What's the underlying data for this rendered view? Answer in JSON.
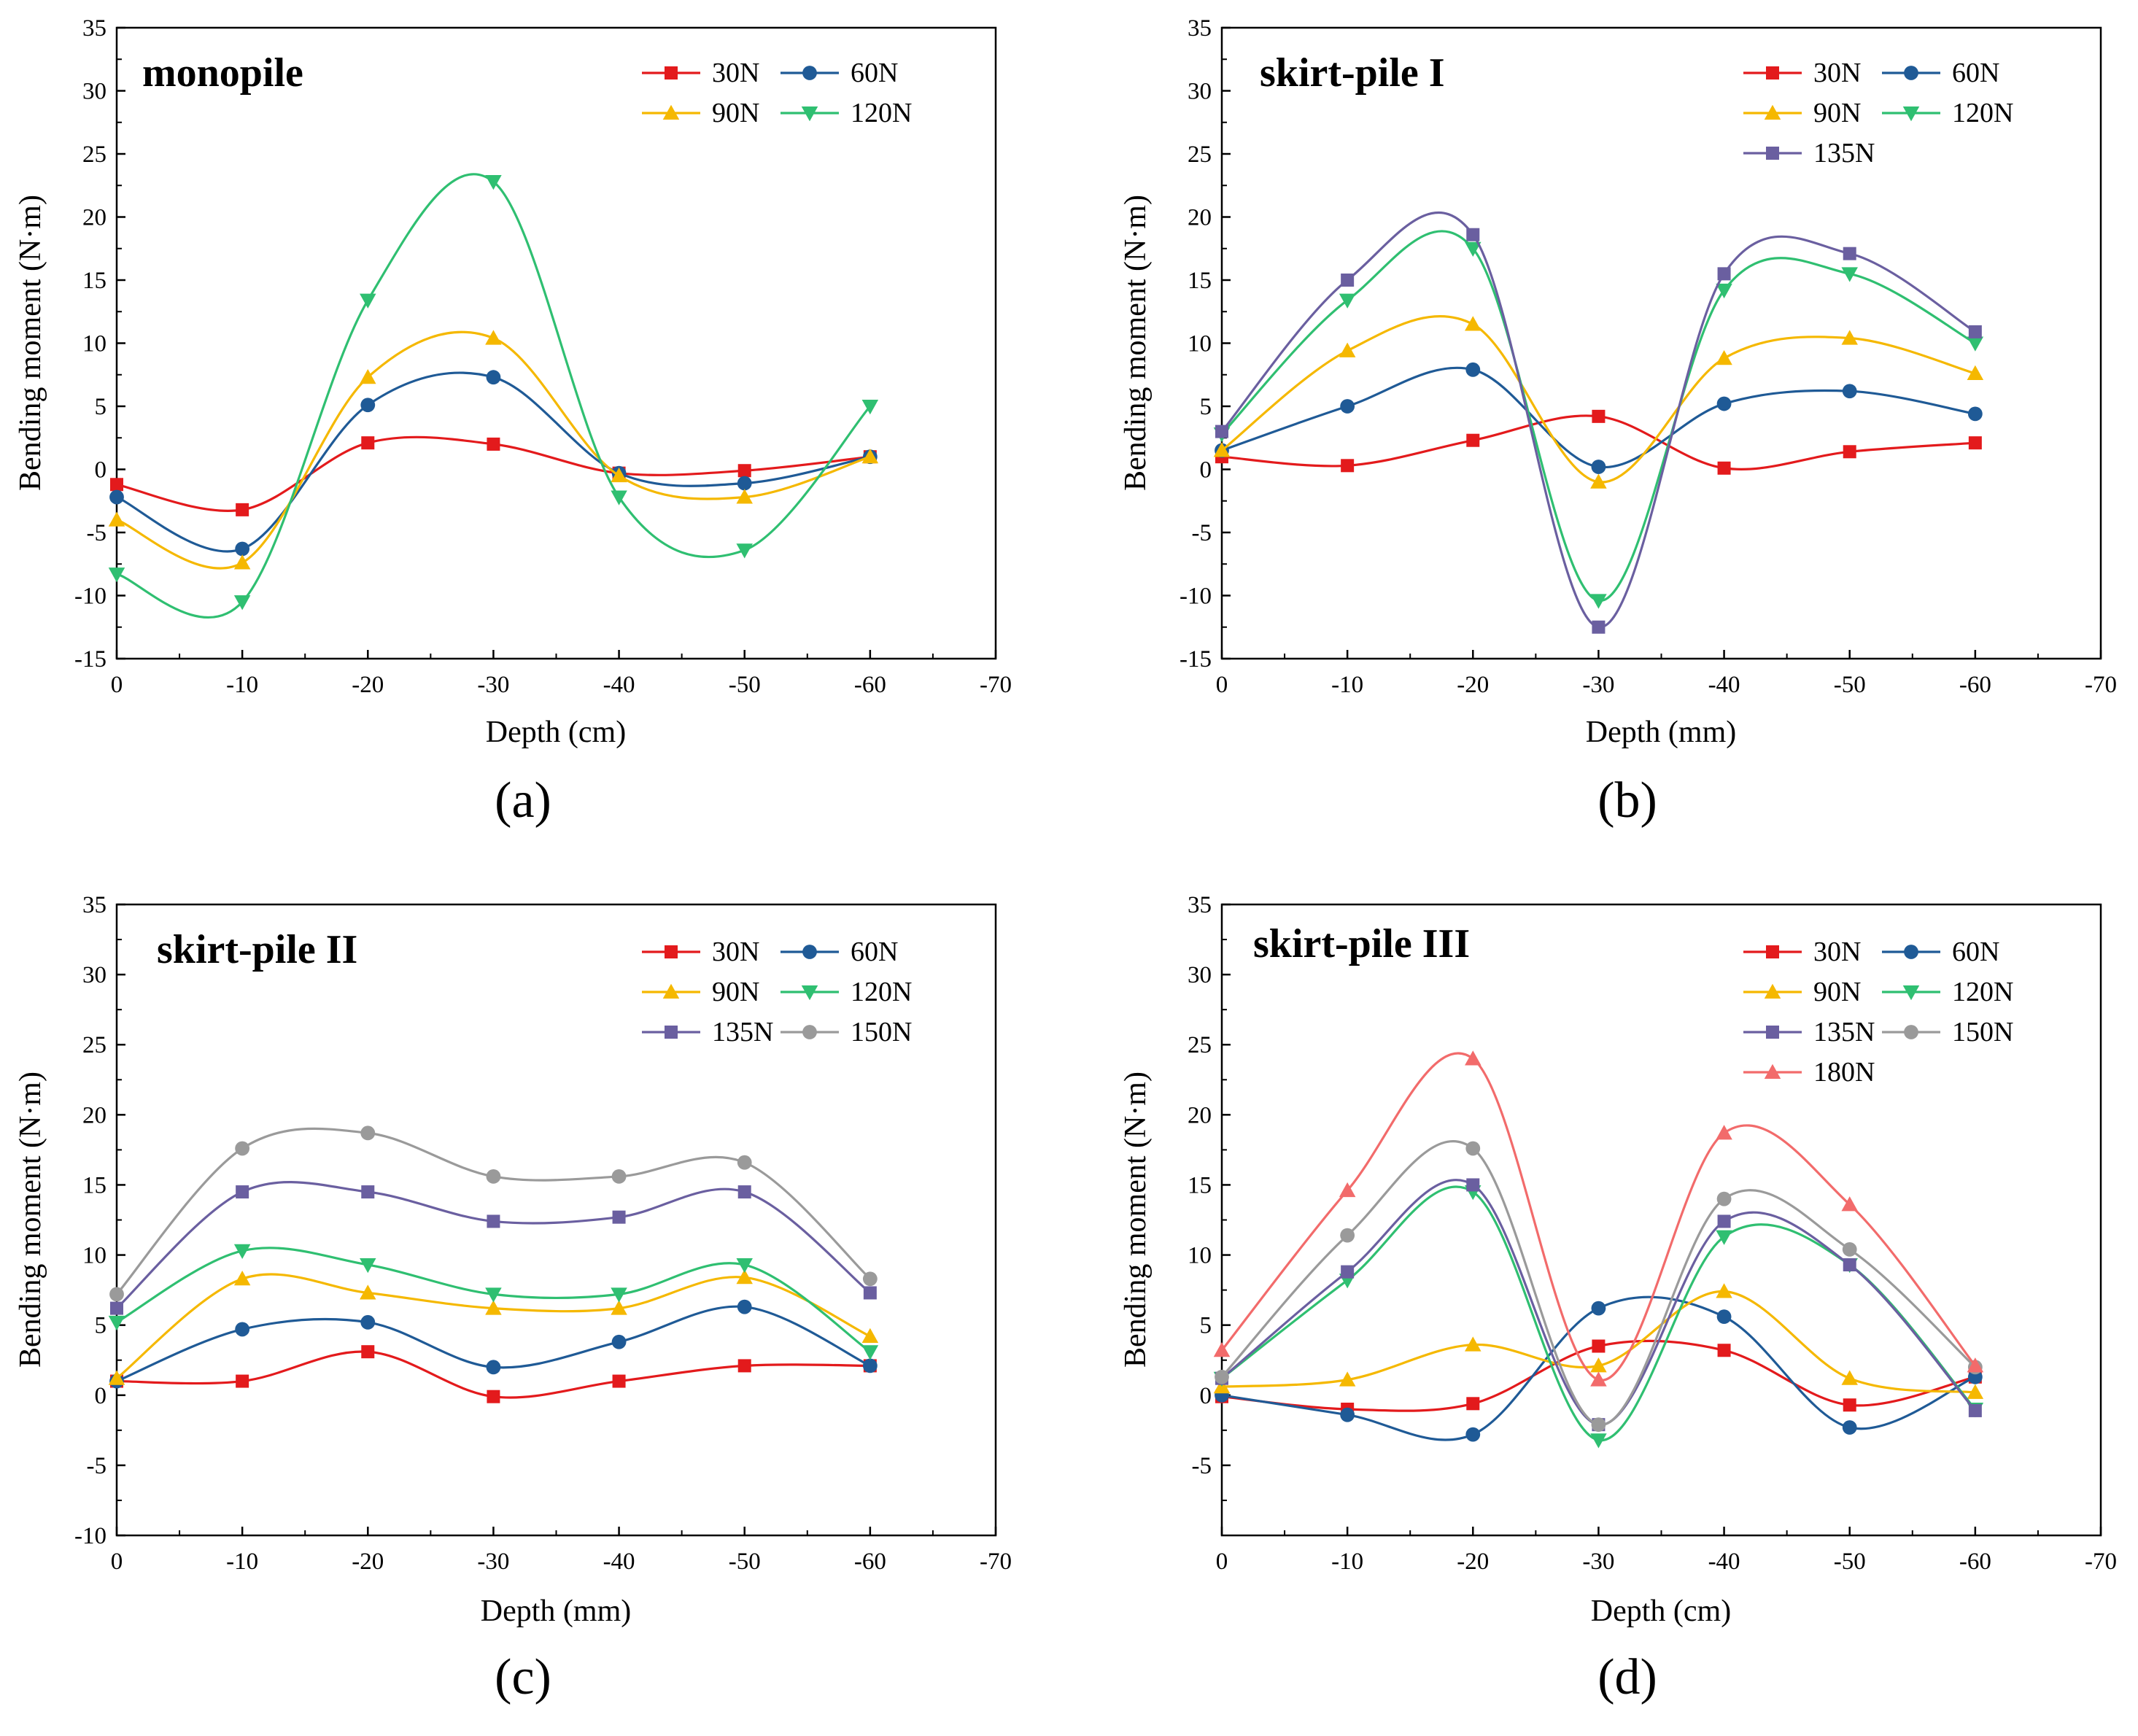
{
  "chart_data": [
    {
      "type": "line",
      "panel_label": "(a)",
      "title": "monopile",
      "xlabel": "Depth (cm)",
      "ylabel": "Bending moment (N·m)",
      "xlim": [
        0,
        -70
      ],
      "ylim": [
        -15,
        35
      ],
      "x_ticks": [
        0,
        -10,
        -20,
        -30,
        -40,
        -50,
        -60,
        -70
      ],
      "y_ticks": [
        -15,
        -10,
        -5,
        0,
        5,
        10,
        15,
        20,
        25,
        30,
        35
      ],
      "grid": false,
      "legend_position": "top-right",
      "x": [
        0,
        -10,
        -20,
        -30,
        -40,
        -50,
        -60
      ],
      "series": [
        {
          "name": "30N",
          "color": "#e31a1c",
          "marker": "square",
          "values": [
            -1.2,
            -3.2,
            2.1,
            2.0,
            -0.3,
            -0.1,
            1.0
          ]
        },
        {
          "name": "60N",
          "color": "#1f5a96",
          "marker": "circle",
          "values": [
            -2.2,
            -6.3,
            5.1,
            7.3,
            -0.3,
            -1.1,
            1.0
          ]
        },
        {
          "name": "90N",
          "color": "#f5b800",
          "marker": "triangle-up",
          "values": [
            -4.0,
            -7.4,
            7.3,
            10.4,
            -0.5,
            -2.2,
            1.0
          ]
        },
        {
          "name": "120N",
          "color": "#2fbf71",
          "marker": "triangle-down",
          "values": [
            -8.3,
            -10.5,
            13.4,
            22.8,
            -2.2,
            -6.4,
            5.0
          ]
        }
      ]
    },
    {
      "type": "line",
      "panel_label": "(b)",
      "title": "skirt-pile I",
      "xlabel": "Depth (mm)",
      "ylabel": "Bending moment (N·m)",
      "xlim": [
        0,
        -70
      ],
      "ylim": [
        -15,
        35
      ],
      "x_ticks": [
        0,
        -10,
        -20,
        -30,
        -40,
        -50,
        -60,
        -70
      ],
      "y_ticks": [
        -15,
        -10,
        -5,
        0,
        5,
        10,
        15,
        20,
        25,
        30,
        35
      ],
      "grid": false,
      "legend_position": "top-right",
      "x": [
        0,
        -10,
        -20,
        -30,
        -40,
        -50,
        -60
      ],
      "series": [
        {
          "name": "30N",
          "color": "#e31a1c",
          "marker": "square",
          "values": [
            1.0,
            0.3,
            2.3,
            4.2,
            0.1,
            1.4,
            2.1
          ]
        },
        {
          "name": "60N",
          "color": "#1f5a96",
          "marker": "circle",
          "values": [
            1.5,
            5.0,
            7.9,
            0.2,
            5.2,
            6.2,
            4.4
          ]
        },
        {
          "name": "90N",
          "color": "#f5b800",
          "marker": "triangle-up",
          "values": [
            1.5,
            9.4,
            11.5,
            -1.0,
            8.8,
            10.4,
            7.6
          ]
        },
        {
          "name": "120N",
          "color": "#2fbf71",
          "marker": "triangle-down",
          "values": [
            2.8,
            13.4,
            17.5,
            -10.4,
            14.2,
            15.5,
            10.0
          ]
        },
        {
          "name": "135N",
          "color": "#6a5fa0",
          "marker": "square",
          "values": [
            3.0,
            15.0,
            18.6,
            -12.5,
            15.5,
            17.1,
            10.9
          ]
        }
      ]
    },
    {
      "type": "line",
      "panel_label": "(c)",
      "title": "skirt-pile II",
      "xlabel": "Depth (mm)",
      "ylabel": "Bending moment (N·m)",
      "xlim": [
        0,
        -70
      ],
      "ylim": [
        -10,
        35
      ],
      "x_ticks": [
        0,
        -10,
        -20,
        -30,
        -40,
        -50,
        -60,
        -70
      ],
      "y_ticks": [
        -10,
        -5,
        0,
        5,
        10,
        15,
        20,
        25,
        30,
        35
      ],
      "grid": false,
      "legend_position": "top-right",
      "x": [
        0,
        -10,
        -20,
        -30,
        -40,
        -50,
        -60
      ],
      "series": [
        {
          "name": "30N",
          "color": "#e31a1c",
          "marker": "square",
          "values": [
            1.0,
            1.0,
            3.1,
            -0.1,
            1.0,
            2.1,
            2.1
          ]
        },
        {
          "name": "60N",
          "color": "#1f5a96",
          "marker": "circle",
          "values": [
            1.0,
            4.7,
            5.2,
            2.0,
            3.8,
            6.3,
            2.1
          ]
        },
        {
          "name": "90N",
          "color": "#f5b800",
          "marker": "triangle-up",
          "values": [
            1.2,
            8.3,
            7.3,
            6.2,
            6.2,
            8.4,
            4.2
          ]
        },
        {
          "name": "120N",
          "color": "#2fbf71",
          "marker": "triangle-down",
          "values": [
            5.2,
            10.3,
            9.3,
            7.2,
            7.2,
            9.3,
            3.1
          ]
        },
        {
          "name": "135N",
          "color": "#6a5fa0",
          "marker": "square",
          "values": [
            6.2,
            14.5,
            14.5,
            12.4,
            12.7,
            14.5,
            7.3
          ]
        },
        {
          "name": "150N",
          "color": "#9a9a9a",
          "marker": "circle",
          "values": [
            7.2,
            17.6,
            18.7,
            15.6,
            15.6,
            16.6,
            8.3
          ]
        }
      ]
    },
    {
      "type": "line",
      "panel_label": "(d)",
      "title": "skirt-pile III",
      "xlabel": "Depth (cm)",
      "ylabel": "Bending moment (N·m)",
      "xlim": [
        0,
        -70
      ],
      "ylim": [
        -10,
        35
      ],
      "x_ticks": [
        0,
        -10,
        -20,
        -30,
        -40,
        -50,
        -60,
        -70
      ],
      "y_ticks": [
        -5,
        0,
        5,
        10,
        15,
        20,
        25,
        30,
        35
      ],
      "grid": false,
      "legend_position": "top-right",
      "x": [
        0,
        -10,
        -20,
        -30,
        -40,
        -50,
        -60
      ],
      "series": [
        {
          "name": "30N",
          "color": "#e31a1c",
          "marker": "square",
          "values": [
            -0.1,
            -1.0,
            -0.6,
            3.5,
            3.2,
            -0.7,
            1.3
          ]
        },
        {
          "name": "60N",
          "color": "#1f5a96",
          "marker": "circle",
          "values": [
            0.0,
            -1.4,
            -2.8,
            6.2,
            5.6,
            -2.3,
            1.3
          ]
        },
        {
          "name": "90N",
          "color": "#f5b800",
          "marker": "triangle-up",
          "values": [
            0.6,
            1.1,
            3.6,
            2.1,
            7.4,
            1.2,
            0.2
          ]
        },
        {
          "name": "120N",
          "color": "#2fbf71",
          "marker": "triangle-down",
          "values": [
            1.2,
            8.2,
            14.5,
            -3.2,
            11.3,
            9.3,
            -1.0
          ]
        },
        {
          "name": "135N",
          "color": "#6a5fa0",
          "marker": "square",
          "values": [
            1.2,
            8.8,
            15.0,
            -2.1,
            12.4,
            9.3,
            -1.1
          ]
        },
        {
          "name": "150N",
          "color": "#9a9a9a",
          "marker": "circle",
          "values": [
            1.3,
            11.4,
            17.6,
            -2.1,
            14.0,
            10.4,
            2.0
          ]
        },
        {
          "name": "180N",
          "color": "#f26b6b",
          "marker": "triangle-up",
          "values": [
            3.2,
            14.6,
            24.0,
            1.1,
            18.7,
            13.6,
            2.1
          ]
        }
      ]
    }
  ]
}
